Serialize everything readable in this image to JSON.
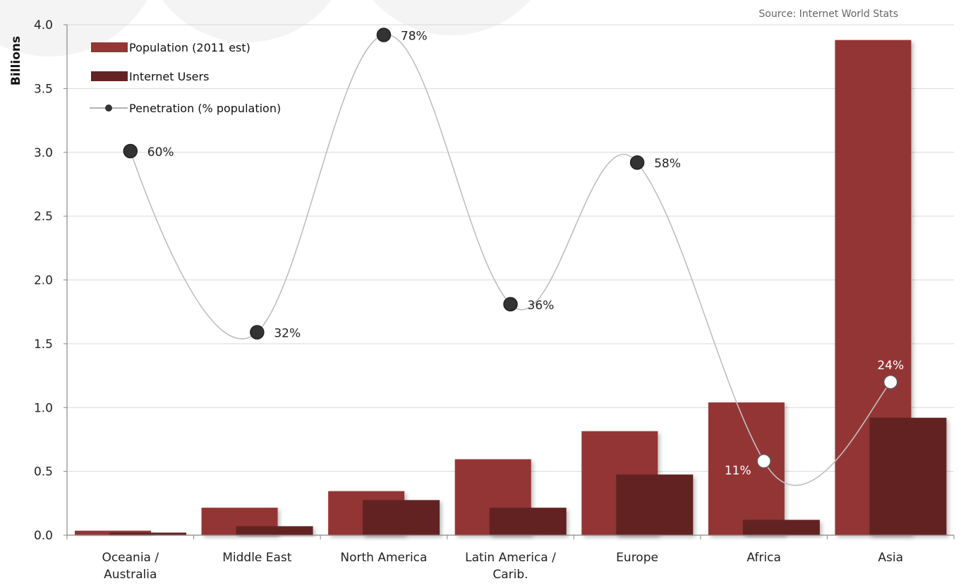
{
  "source": "Source: Internet World Stats",
  "chart_data": {
    "type": "bar",
    "ylabel": "Billions",
    "ylim": [
      0,
      4.0
    ],
    "yticks": [
      "0.0",
      "0.5",
      "1.0",
      "1.5",
      "2.0",
      "2.5",
      "3.0",
      "3.5",
      "4.0"
    ],
    "categories": [
      [
        "Oceania /",
        "Australia"
      ],
      [
        "Middle East"
      ],
      [
        "North America"
      ],
      [
        "Latin America /",
        "Carib."
      ],
      [
        "Europe"
      ],
      [
        "Africa"
      ],
      [
        "Asia"
      ]
    ],
    "series": [
      {
        "name": "Population (2011 est)",
        "type": "bar",
        "color": "#943634",
        "values": [
          0.035,
          0.215,
          0.345,
          0.595,
          0.815,
          1.04,
          3.88
        ]
      },
      {
        "name": "Internet Users",
        "type": "bar",
        "color": "#632423",
        "values": [
          0.02,
          0.07,
          0.275,
          0.215,
          0.475,
          0.12,
          0.92
        ]
      },
      {
        "name": "Penetration (% population)",
        "type": "line",
        "color": "#bfbfbf",
        "values": [
          60,
          32,
          78,
          36,
          58,
          11,
          24
        ],
        "labels": [
          "60%",
          "32%",
          "78%",
          "36%",
          "58%",
          "11%",
          "24%"
        ],
        "plot_positions": [
          3.01,
          1.59,
          3.92,
          1.81,
          2.92,
          0.58,
          1.2
        ]
      }
    ],
    "legend": "top-left",
    "grid": true
  }
}
